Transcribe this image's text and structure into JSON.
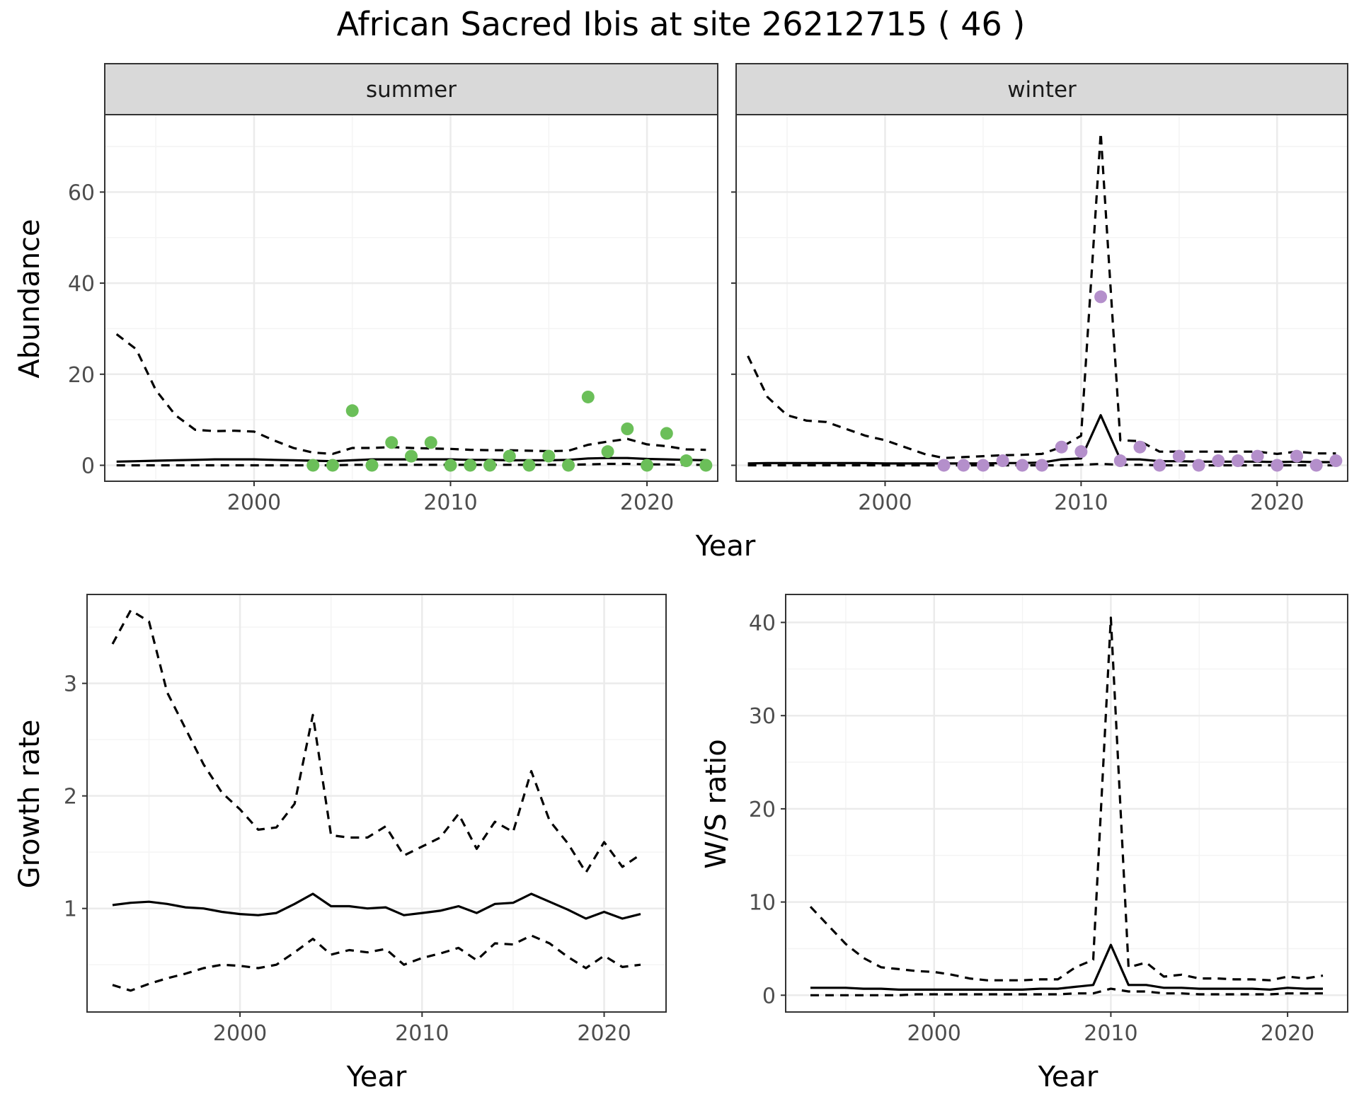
{
  "title": "African Sacred Ibis at site 26212715 ( 46 )",
  "colors": {
    "summer_points": "#6bbf59",
    "winter_points": "#b48fcb",
    "line": "#000000",
    "strip_fill": "#d9d9d9",
    "grid_major": "#ebebeb",
    "grid_minor": "#f4f4f4"
  },
  "chart_data": [
    {
      "type": "line",
      "panel": "summer",
      "strip_label": "summer",
      "xlabel": "Year",
      "ylabel": "Abundance",
      "xlim": [
        1992.4,
        2023.6
      ],
      "ylim": [
        -3.5,
        77
      ],
      "x_ticks": [
        2000,
        2010,
        2020
      ],
      "y_ticks": [
        0,
        20,
        40,
        60
      ],
      "x": [
        1993,
        1994,
        1995,
        1996,
        1997,
        1998,
        1999,
        2000,
        2001,
        2002,
        2003,
        2004,
        2005,
        2006,
        2007,
        2008,
        2009,
        2010,
        2011,
        2012,
        2013,
        2014,
        2015,
        2016,
        2017,
        2018,
        2019,
        2020,
        2021,
        2022,
        2023
      ],
      "series": [
        {
          "role": "mean",
          "style": "solid",
          "values": [
            0.8,
            0.9,
            1.0,
            1.1,
            1.2,
            1.3,
            1.3,
            1.3,
            1.2,
            1.1,
            1.0,
            0.9,
            1.1,
            1.3,
            1.3,
            1.3,
            1.3,
            1.3,
            1.2,
            1.2,
            1.1,
            1.1,
            1.1,
            1.2,
            1.5,
            1.6,
            1.6,
            1.4,
            1.3,
            1.2,
            1.1
          ]
        },
        {
          "role": "upper",
          "style": "dashed",
          "values": [
            28.8,
            25.5,
            16.5,
            11.0,
            7.8,
            7.5,
            7.6,
            7.4,
            5.5,
            3.8,
            2.8,
            2.5,
            3.8,
            3.8,
            4.0,
            3.8,
            3.7,
            3.6,
            3.4,
            3.3,
            3.3,
            3.2,
            3.1,
            3.2,
            4.5,
            5.2,
            5.8,
            4.6,
            4.2,
            3.5,
            3.4
          ]
        },
        {
          "role": "lower",
          "style": "dashed",
          "values": [
            0.0,
            0.0,
            0.0,
            0.0,
            0.0,
            0.0,
            0.0,
            0.0,
            0.0,
            0.0,
            0.0,
            0.0,
            0.1,
            0.1,
            0.1,
            0.1,
            0.1,
            0.1,
            0.1,
            0.1,
            0.1,
            0.1,
            0.1,
            0.1,
            0.2,
            0.3,
            0.3,
            0.2,
            0.2,
            0.1,
            0.1
          ]
        }
      ],
      "points": {
        "x": [
          2003,
          2004,
          2005,
          2006,
          2007,
          2008,
          2009,
          2010,
          2011,
          2012,
          2013,
          2014,
          2015,
          2016,
          2017,
          2018,
          2019,
          2020,
          2021,
          2022,
          2023
        ],
        "y": [
          0,
          0,
          12,
          0,
          5,
          2,
          5,
          0,
          0,
          0,
          2,
          0,
          2,
          0,
          15,
          3,
          8,
          0,
          7,
          1,
          0
        ]
      }
    },
    {
      "type": "line",
      "panel": "winter",
      "strip_label": "winter",
      "xlabel": "Year",
      "ylabel": "Abundance",
      "xlim": [
        1992.4,
        2023.6
      ],
      "ylim": [
        -3.5,
        77
      ],
      "x_ticks": [
        2000,
        2010,
        2020
      ],
      "y_ticks": [
        0,
        20,
        40,
        60
      ],
      "x": [
        1993,
        1994,
        1995,
        1996,
        1997,
        1998,
        1999,
        2000,
        2001,
        2002,
        2003,
        2004,
        2005,
        2006,
        2007,
        2008,
        2009,
        2010,
        2011,
        2012,
        2013,
        2014,
        2015,
        2016,
        2017,
        2018,
        2019,
        2020,
        2021,
        2022,
        2023
      ],
      "series": [
        {
          "role": "mean",
          "style": "solid",
          "values": [
            0.4,
            0.5,
            0.5,
            0.5,
            0.5,
            0.5,
            0.5,
            0.4,
            0.4,
            0.4,
            0.4,
            0.4,
            0.4,
            0.5,
            0.5,
            0.6,
            1.3,
            1.5,
            11.0,
            1.3,
            1.3,
            0.9,
            0.9,
            0.8,
            0.8,
            0.8,
            0.8,
            0.7,
            0.8,
            0.7,
            0.7
          ]
        },
        {
          "role": "upper",
          "style": "dashed",
          "values": [
            24.0,
            15.0,
            11.0,
            9.8,
            9.5,
            8.0,
            6.5,
            5.5,
            4.0,
            2.5,
            1.6,
            1.8,
            2.0,
            2.2,
            2.3,
            2.5,
            4.0,
            6.5,
            73.0,
            5.5,
            5.3,
            3.0,
            3.0,
            3.0,
            3.0,
            3.0,
            3.0,
            2.5,
            3.0,
            2.6,
            2.6
          ]
        },
        {
          "role": "lower",
          "style": "dashed",
          "values": [
            0.0,
            0.0,
            0.0,
            0.0,
            0.0,
            0.0,
            0.0,
            0.0,
            0.0,
            0.0,
            0.0,
            0.0,
            0.0,
            0.0,
            0.0,
            0.0,
            0.0,
            0.1,
            0.3,
            0.1,
            0.1,
            0.0,
            0.0,
            0.0,
            0.0,
            0.0,
            0.0,
            0.0,
            0.0,
            0.0,
            0.0
          ]
        }
      ],
      "points": {
        "x": [
          2003,
          2004,
          2005,
          2006,
          2007,
          2008,
          2009,
          2010,
          2011,
          2012,
          2013,
          2014,
          2015,
          2016,
          2017,
          2018,
          2019,
          2020,
          2021,
          2022,
          2023
        ],
        "y": [
          0,
          0,
          0,
          1,
          0,
          0,
          4,
          3,
          37,
          1,
          4,
          0,
          2,
          0,
          1,
          1,
          2,
          0,
          2,
          0,
          1
        ]
      }
    },
    {
      "type": "line",
      "panel": "growth",
      "xlabel": "Year",
      "ylabel": "Growth rate",
      "xlim": [
        1991.6,
        2023.4
      ],
      "ylim": [
        0.08,
        3.79
      ],
      "x_ticks": [
        2000,
        2010,
        2020
      ],
      "y_ticks": [
        1,
        2,
        3
      ],
      "x": [
        1993,
        1994,
        1995,
        1996,
        1997,
        1998,
        1999,
        2000,
        2001,
        2002,
        2003,
        2004,
        2005,
        2006,
        2007,
        2008,
        2009,
        2010,
        2011,
        2012,
        2013,
        2014,
        2015,
        2016,
        2017,
        2018,
        2019,
        2020,
        2021,
        2022
      ],
      "series": [
        {
          "role": "mean",
          "style": "solid",
          "values": [
            1.03,
            1.05,
            1.06,
            1.04,
            1.01,
            1.0,
            0.97,
            0.95,
            0.94,
            0.96,
            1.04,
            1.13,
            1.02,
            1.02,
            1.0,
            1.01,
            0.94,
            0.96,
            0.98,
            1.02,
            0.96,
            1.04,
            1.05,
            1.13,
            1.06,
            0.99,
            0.91,
            0.97,
            0.91,
            0.95
          ]
        },
        {
          "role": "upper",
          "style": "dashed",
          "values": [
            3.35,
            3.65,
            3.55,
            2.92,
            2.6,
            2.28,
            2.03,
            1.88,
            1.7,
            1.72,
            1.93,
            2.72,
            1.65,
            1.63,
            1.63,
            1.73,
            1.47,
            1.55,
            1.63,
            1.84,
            1.53,
            1.77,
            1.68,
            2.22,
            1.78,
            1.58,
            1.32,
            1.59,
            1.37,
            1.48
          ]
        },
        {
          "role": "lower",
          "style": "dashed",
          "values": [
            0.32,
            0.27,
            0.33,
            0.38,
            0.42,
            0.47,
            0.5,
            0.49,
            0.47,
            0.5,
            0.61,
            0.73,
            0.59,
            0.63,
            0.61,
            0.64,
            0.5,
            0.56,
            0.6,
            0.65,
            0.54,
            0.69,
            0.68,
            0.76,
            0.69,
            0.57,
            0.47,
            0.58,
            0.48,
            0.5
          ]
        }
      ]
    },
    {
      "type": "line",
      "panel": "ws_ratio",
      "xlabel": "Year",
      "ylabel": "W/S ratio",
      "xlim": [
        1991.6,
        2023.4
      ],
      "ylim": [
        -1.8,
        43
      ],
      "x_ticks": [
        2000,
        2010,
        2020
      ],
      "y_ticks": [
        0,
        10,
        20,
        30,
        40
      ],
      "x": [
        1993,
        1994,
        1995,
        1996,
        1997,
        1998,
        1999,
        2000,
        2001,
        2002,
        2003,
        2004,
        2005,
        2006,
        2007,
        2008,
        2009,
        2010,
        2011,
        2012,
        2013,
        2014,
        2015,
        2016,
        2017,
        2018,
        2019,
        2020,
        2021,
        2022
      ],
      "series": [
        {
          "role": "mean",
          "style": "solid",
          "values": [
            0.8,
            0.8,
            0.8,
            0.7,
            0.7,
            0.6,
            0.6,
            0.6,
            0.6,
            0.6,
            0.6,
            0.6,
            0.6,
            0.7,
            0.7,
            0.9,
            1.1,
            5.4,
            1.1,
            1.1,
            0.8,
            0.8,
            0.7,
            0.7,
            0.7,
            0.7,
            0.6,
            0.8,
            0.7,
            0.7
          ]
        },
        {
          "role": "upper",
          "style": "dashed",
          "values": [
            9.5,
            7.5,
            5.5,
            4.0,
            3.0,
            2.8,
            2.6,
            2.5,
            2.2,
            1.8,
            1.6,
            1.6,
            1.6,
            1.7,
            1.7,
            3.0,
            3.8,
            40.5,
            3.0,
            3.5,
            2.0,
            2.2,
            1.8,
            1.8,
            1.7,
            1.7,
            1.6,
            2.0,
            1.8,
            2.1
          ]
        },
        {
          "role": "lower",
          "style": "dashed",
          "values": [
            0.0,
            0.0,
            0.0,
            0.0,
            0.0,
            0.0,
            0.1,
            0.1,
            0.1,
            0.1,
            0.1,
            0.1,
            0.1,
            0.1,
            0.1,
            0.2,
            0.2,
            0.7,
            0.4,
            0.4,
            0.2,
            0.2,
            0.1,
            0.1,
            0.1,
            0.1,
            0.1,
            0.2,
            0.2,
            0.2
          ]
        }
      ]
    }
  ]
}
